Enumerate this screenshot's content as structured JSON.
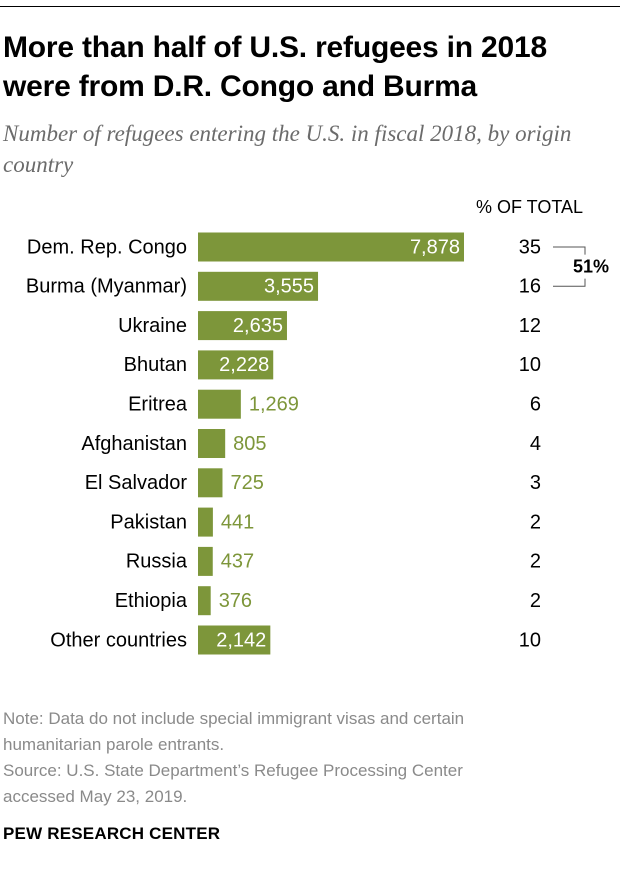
{
  "title": "More than half of U.S. refugees in 2018 were from D.R. Congo and Burma",
  "subtitle": "Number of refugees entering the U.S. in fiscal 2018, by origin country",
  "colors": {
    "bar": "#7d963a",
    "inside_label": "#ffffff",
    "outside_label": "#7d963a",
    "bracket": "#555555"
  },
  "chart_data": {
    "type": "bar",
    "orientation": "horizontal",
    "title": "More than half of U.S. refugees in 2018 were from D.R. Congo and Burma",
    "subtitle": "Number of refugees entering the U.S. in fiscal 2018, by origin country",
    "xlabel": "",
    "ylabel": "",
    "xlim": [
      0,
      7878
    ],
    "grid": false,
    "categories": [
      "Dem. Rep. Congo",
      "Burma (Myanmar)",
      "Ukraine",
      "Bhutan",
      "Eritrea",
      "Afghanistan",
      "El Salvador",
      "Pakistan",
      "Russia",
      "Ethiopia",
      "Other countries"
    ],
    "values": [
      7878,
      3555,
      2635,
      2228,
      1269,
      805,
      725,
      441,
      437,
      376,
      2142
    ],
    "value_labels": [
      "7,878",
      "3,555",
      "2,635",
      "2,228",
      "1,269",
      "805",
      "725",
      "441",
      "437",
      "376",
      "2,142"
    ],
    "pct_header": "% OF TOTAL",
    "pct_of_total": [
      "35",
      "16",
      "12",
      "10",
      "6",
      "4",
      "3",
      "2",
      "2",
      "2",
      "10"
    ],
    "annotation": {
      "text": "51%",
      "rows": [
        0,
        1
      ]
    }
  },
  "note": {
    "line1": "Note: Data do not include special immigrant visas and certain",
    "line2": "humanitarian parole entrants.",
    "line3": "Source: U.S. State Department’s Refugee Processing Center",
    "line4": "accessed May 23, 2019."
  },
  "brand": "PEW RESEARCH CENTER"
}
